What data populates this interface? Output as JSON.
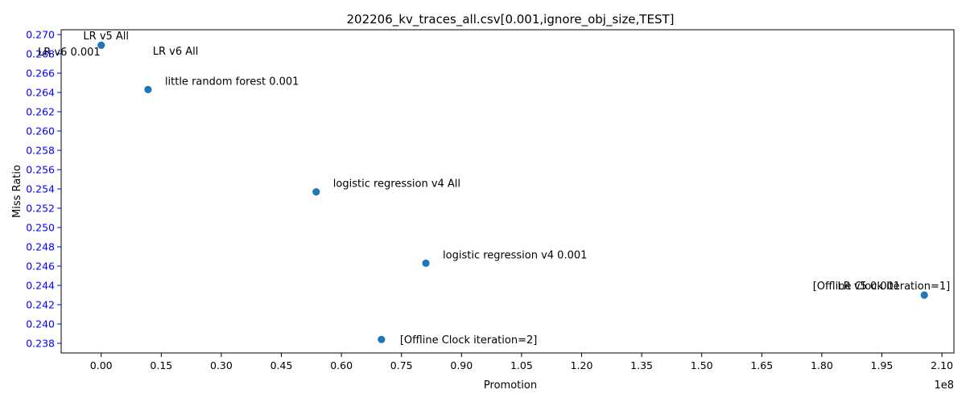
{
  "chart_data": {
    "type": "scatter",
    "title": "202206_kv_traces_all.csv[0.001,ignore_obj_size,TEST]",
    "xlabel": "Promotion",
    "ylabel": "Miss Ratio",
    "x_offset_label": "1e8",
    "xlim": [
      -0.1,
      2.13
    ],
    "ylim": [
      0.237,
      0.2705
    ],
    "x_ticks": [
      0.0,
      0.15,
      0.3,
      0.45,
      0.6,
      0.75,
      0.9,
      1.05,
      1.2,
      1.35,
      1.5,
      1.65,
      1.8,
      1.95,
      2.1
    ],
    "x_tick_labels": [
      "0.00",
      "0.15",
      "0.30",
      "0.45",
      "0.60",
      "0.75",
      "0.90",
      "1.05",
      "1.20",
      "1.35",
      "1.50",
      "1.65",
      "1.80",
      "1.95",
      "2.10"
    ],
    "y_ticks": [
      0.238,
      0.24,
      0.242,
      0.244,
      0.246,
      0.248,
      0.25,
      0.252,
      0.254,
      0.256,
      0.258,
      0.26,
      0.262,
      0.264,
      0.266,
      0.268,
      0.27
    ],
    "y_tick_labels": [
      "0.238",
      "0.240",
      "0.242",
      "0.244",
      "0.246",
      "0.248",
      "0.250",
      "0.252",
      "0.254",
      "0.256",
      "0.258",
      "0.260",
      "0.262",
      "0.264",
      "0.266",
      "0.268",
      "0.270"
    ],
    "y_tick_color": "#0000ff",
    "marker_color": "#1f77b4",
    "grid": false,
    "points": [
      {
        "x": 0.0,
        "y": 0.2689
      },
      {
        "x": 0.117,
        "y": 0.2643
      },
      {
        "x": 0.537,
        "y": 0.2537
      },
      {
        "x": 0.811,
        "y": 0.2463
      },
      {
        "x": 0.7,
        "y": 0.2384
      },
      {
        "x": 2.056,
        "y": 0.243
      }
    ],
    "annotations": [
      {
        "text": "LR v5 All",
        "x": 0.0,
        "y": 0.2689,
        "position": "above"
      },
      {
        "text": "LR v6 0.001",
        "x": 0.0,
        "y": 0.2689,
        "position": "below-left"
      },
      {
        "text": "LR v6 All",
        "x": 0.0,
        "y": 0.2689,
        "position": "below-right"
      },
      {
        "text": "little random forest 0.001",
        "x": 0.117,
        "y": 0.2643,
        "position": "upper-right"
      },
      {
        "text": "logistic regression v4 All",
        "x": 0.537,
        "y": 0.2537,
        "position": "upper-right"
      },
      {
        "text": "logistic regression v4 0.001",
        "x": 0.811,
        "y": 0.2463,
        "position": "upper-right"
      },
      {
        "text": "[Offline Clock iteration=2]",
        "x": 0.7,
        "y": 0.2384,
        "position": "right"
      },
      {
        "text": "[Offline Clock iteration=1]",
        "x": 2.056,
        "y": 0.243,
        "position": "above-left"
      },
      {
        "text": "LR v5 0.001",
        "x": 2.056,
        "y": 0.243,
        "position": "above-left"
      }
    ]
  }
}
